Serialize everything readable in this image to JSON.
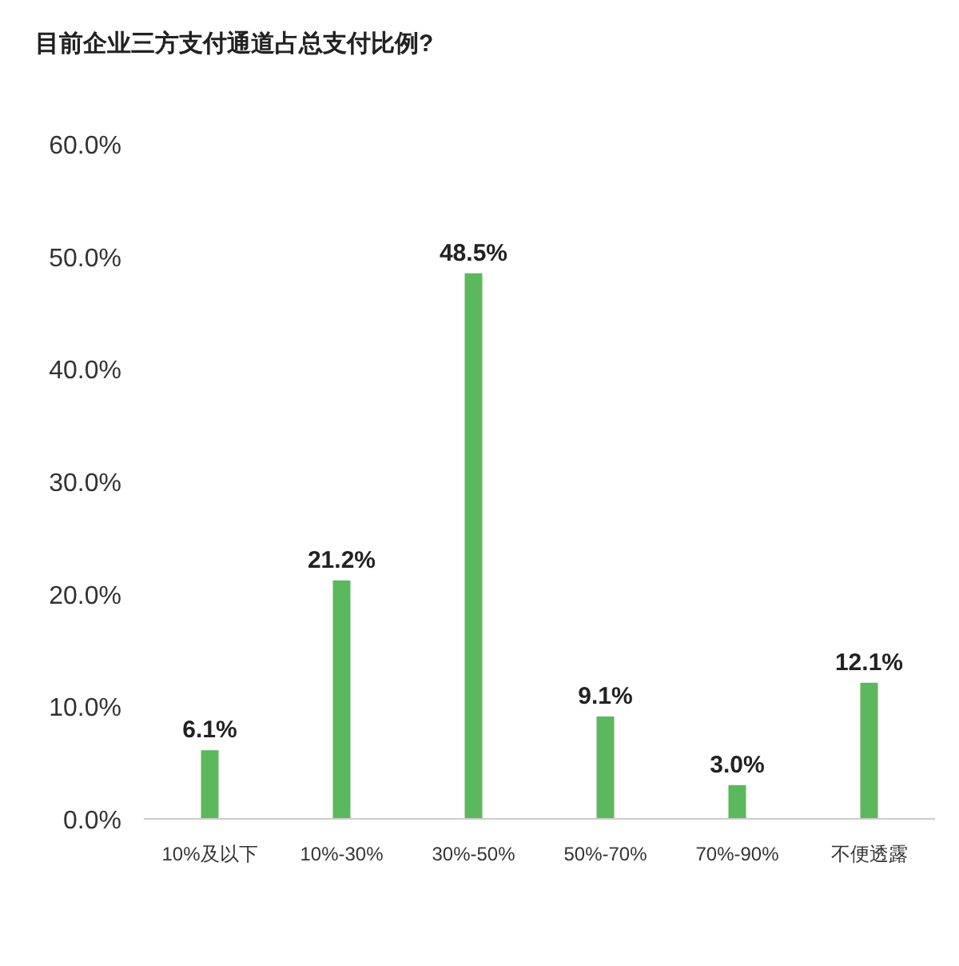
{
  "chart_data": {
    "type": "bar",
    "title": "目前企业三方支付通道占总支付比例?",
    "categories": [
      "10%及以下",
      "10%-30%",
      "30%-50%",
      "50%-70%",
      "70%-90%",
      "不便透露"
    ],
    "values": [
      6.1,
      21.2,
      48.5,
      9.1,
      3.0,
      12.1
    ],
    "value_labels": [
      "6.1%",
      "21.2%",
      "48.5%",
      "9.1%",
      "3.0%",
      "12.1%"
    ],
    "color": "#5cb85c",
    "ylim": [
      0,
      60
    ],
    "yticks": [
      {
        "value": 0,
        "label": "0.0%"
      },
      {
        "value": 10,
        "label": "10.0%"
      },
      {
        "value": 20,
        "label": "20.0%"
      },
      {
        "value": 30,
        "label": "30.0%"
      },
      {
        "value": 40,
        "label": "40.0%"
      },
      {
        "value": 50,
        "label": "50.0%"
      },
      {
        "value": 60,
        "label": "60.0%"
      }
    ],
    "grid": false
  }
}
